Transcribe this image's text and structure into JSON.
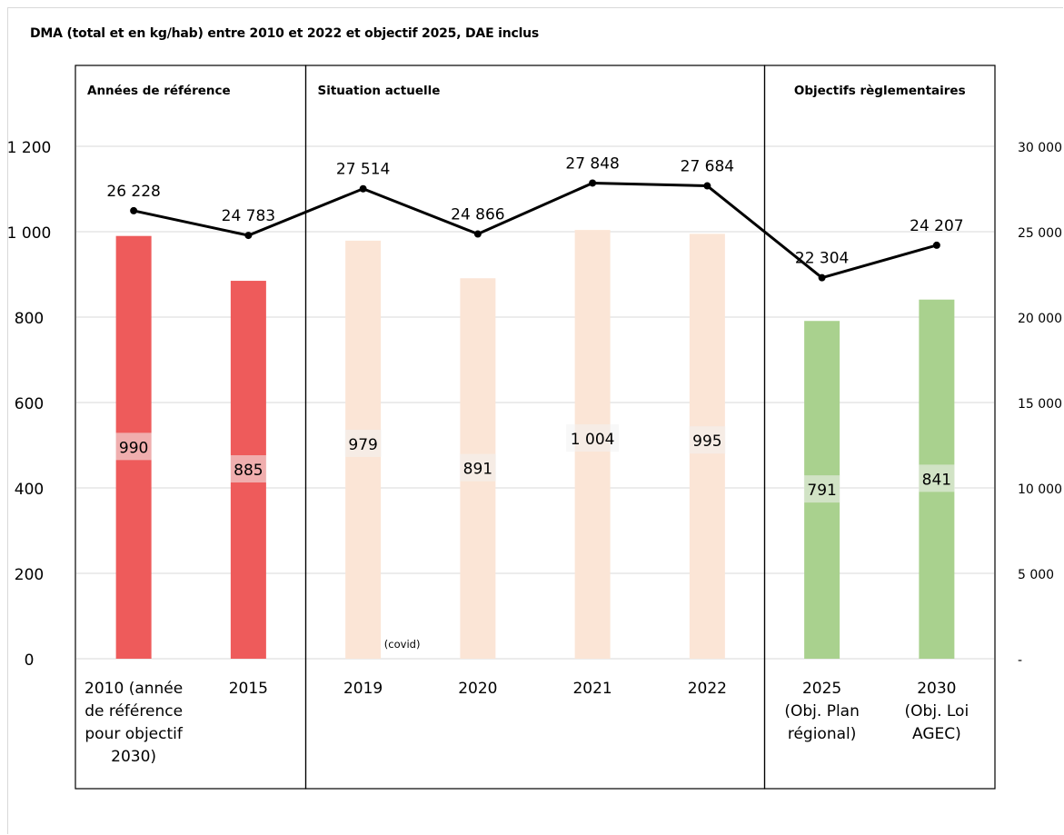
{
  "chart_data": {
    "type": "bar",
    "title": "DMA (total et en kg/hab) entre 2010 et 2022 et objectif 2025, DAE inclus",
    "categories": [
      [
        "2010 (année",
        "de référence",
        "pour objectif",
        "2030)"
      ],
      [
        "2015"
      ],
      [
        "2019"
      ],
      [
        "2020"
      ],
      [
        "2021"
      ],
      [
        "2022"
      ],
      [
        "2025",
        "(Obj. Plan",
        "régional)"
      ],
      [
        "2030",
        "(Obj. Loi",
        "AGEC)"
      ]
    ],
    "bars": {
      "values": [
        990,
        885,
        979,
        891,
        1004,
        995,
        791,
        841
      ],
      "labels": [
        "990",
        "885",
        "979",
        "891",
        "1 004",
        "995",
        "791",
        "841"
      ],
      "colors": [
        "#ee5b5b",
        "#ee5b5b",
        "#fbe5d6",
        "#fbe5d6",
        "#fbe5d6",
        "#fbe5d6",
        "#a9d18e",
        "#a9d18e"
      ]
    },
    "line": {
      "values": [
        26228,
        24783,
        27514,
        24866,
        27848,
        27684,
        22304,
        24207
      ],
      "labels": [
        "26 228",
        "24 783",
        "27 514",
        "24 866",
        "27 848",
        "27 684",
        "22 304",
        "24 207"
      ],
      "color": "#000000"
    },
    "y_left": {
      "range": [
        0,
        1200
      ],
      "ticks": [
        0,
        200,
        400,
        600,
        800,
        1000,
        1200
      ],
      "tick_labels": [
        "0",
        "200",
        "400",
        "600",
        "800",
        "1 000",
        "1 200"
      ]
    },
    "y_right": {
      "range": [
        0,
        30000
      ],
      "ticks": [
        0,
        5000,
        10000,
        15000,
        20000,
        25000,
        30000
      ],
      "tick_labels": [
        "-",
        "5 000",
        "10 000",
        "15 000",
        "20 000",
        "25 000",
        "30 000"
      ]
    },
    "grid": true,
    "sections": [
      {
        "name": "Années de référence",
        "categories": [
          0,
          1
        ]
      },
      {
        "name": "Situation actuelle",
        "categories": [
          2,
          3,
          4,
          5
        ]
      },
      {
        "name": "Objectifs règlementaires",
        "categories": [
          6,
          7
        ]
      }
    ],
    "annotations": [
      {
        "text": "(covid)",
        "category": 2
      }
    ]
  }
}
